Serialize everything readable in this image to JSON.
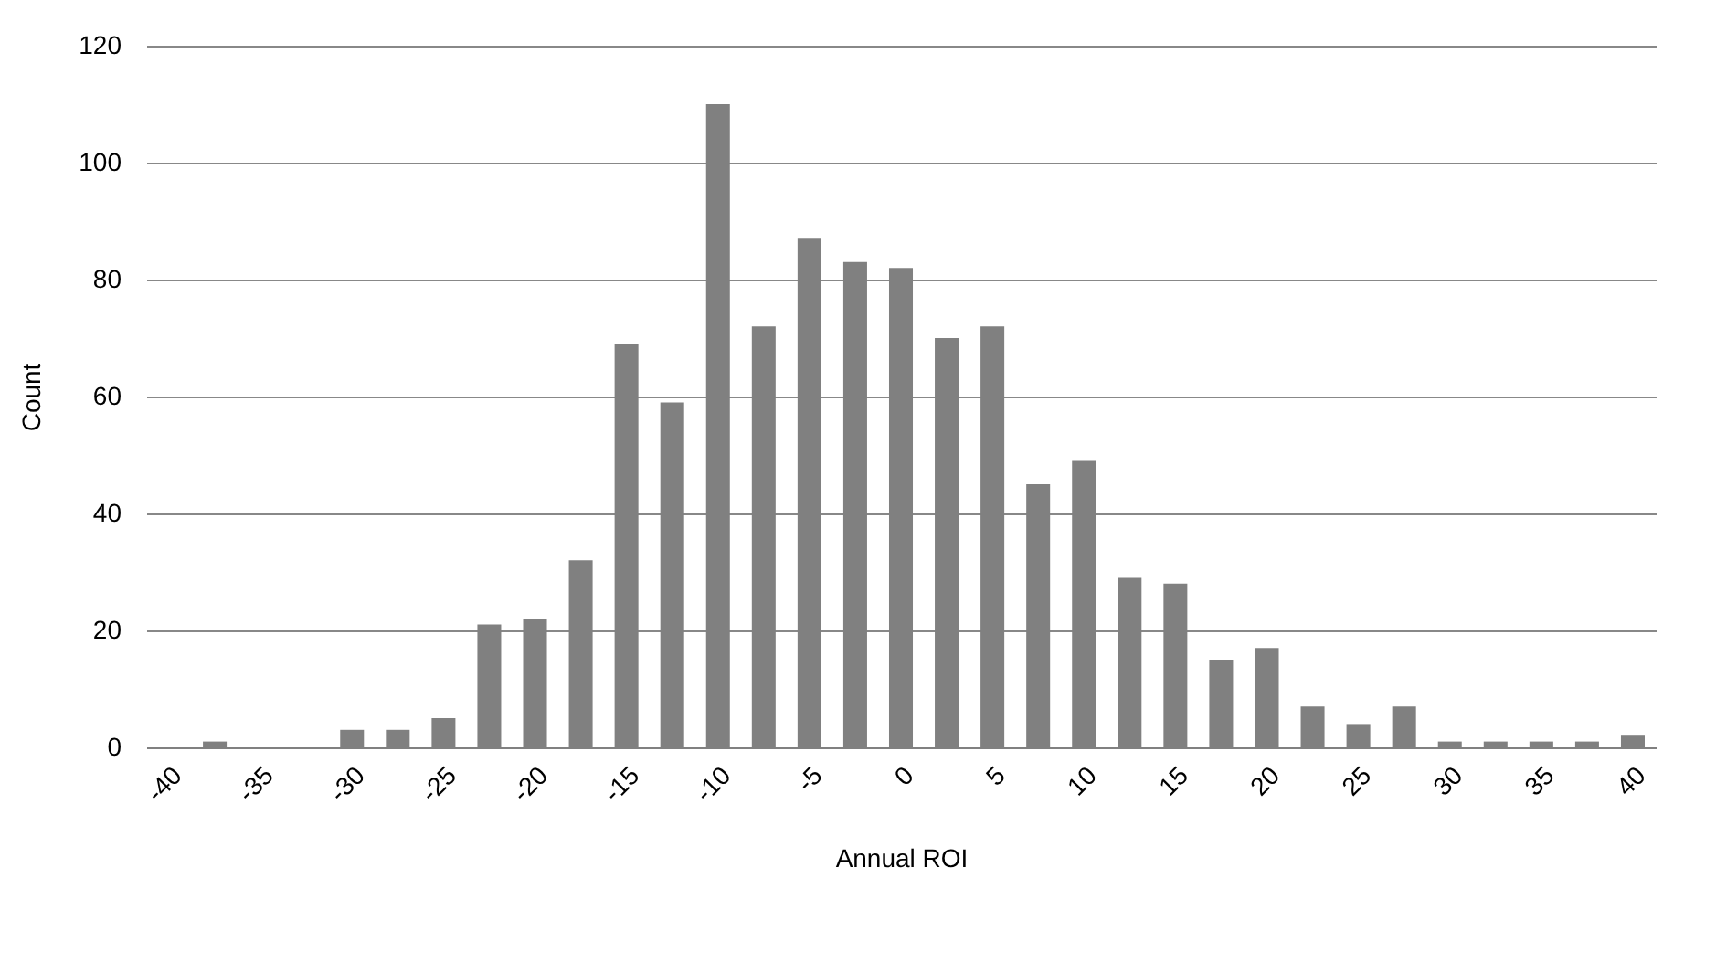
{
  "chart_data": {
    "type": "bar",
    "xlabel": "Annual ROI",
    "ylabel": "Count",
    "categories": [
      "-40",
      null,
      "-35",
      null,
      "-30",
      null,
      "-25",
      null,
      "-20",
      null,
      "-15",
      null,
      "-10",
      null,
      "-5",
      null,
      "0",
      null,
      "5",
      null,
      "10",
      null,
      "15",
      null,
      "20",
      null,
      "25",
      null,
      "30",
      null,
      "35",
      null,
      "40"
    ],
    "values": [
      0,
      1,
      0,
      0,
      3,
      3,
      5,
      21,
      22,
      32,
      69,
      59,
      110,
      72,
      87,
      83,
      82,
      70,
      72,
      45,
      49,
      29,
      28,
      15,
      17,
      7,
      4,
      7,
      1,
      1,
      1,
      1,
      2
    ],
    "color": "#808080",
    "ylim": [
      0,
      120
    ],
    "yticks": [
      0,
      20,
      40,
      60,
      80,
      100,
      120
    ],
    "grid": "y"
  }
}
